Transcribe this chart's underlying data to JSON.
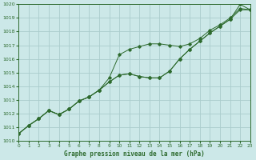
{
  "title": "Graphe pression niveau de la mer (hPa)",
  "x_values": [
    0,
    1,
    2,
    3,
    4,
    5,
    6,
    7,
    8,
    9,
    10,
    11,
    12,
    13,
    14,
    15,
    16,
    17,
    18,
    19,
    20,
    21,
    22,
    23
  ],
  "line1": [
    1010.5,
    1011.1,
    1011.6,
    1012.2,
    1011.9,
    1012.3,
    1012.9,
    1013.2,
    1013.7,
    1014.6,
    1016.3,
    1016.7,
    1016.9,
    1017.1,
    1017.1,
    1017.0,
    1016.9,
    1017.1,
    1017.5,
    1018.1,
    1018.5,
    1019.0,
    1019.7,
    1019.6
  ],
  "line2": [
    1010.5,
    1011.1,
    1011.6,
    1012.2,
    1011.9,
    1012.3,
    1012.9,
    1013.2,
    1013.7,
    1014.3,
    1014.8,
    1014.9,
    1014.7,
    1014.6,
    1014.6,
    1015.1,
    1016.0,
    1016.7,
    1017.3,
    1017.9,
    1018.4,
    1018.9,
    1019.6,
    1019.6
  ],
  "line3": [
    1010.5,
    1011.1,
    1011.6,
    1012.2,
    1011.9,
    1012.3,
    1012.9,
    1013.2,
    1013.7,
    1014.3,
    1014.8,
    1014.9,
    1014.7,
    1014.6,
    1014.6,
    1015.1,
    1016.0,
    1016.7,
    1017.3,
    1017.9,
    1018.4,
    1018.9,
    1020.0,
    1019.6
  ],
  "line_color": "#2d6a2d",
  "bg_color": "#cce8e8",
  "grid_color": "#aacccc",
  "ylim": [
    1010,
    1020
  ],
  "xlim": [
    0,
    23
  ],
  "yticks": [
    1010,
    1011,
    1012,
    1013,
    1014,
    1015,
    1016,
    1017,
    1018,
    1019,
    1020
  ],
  "xticks": [
    0,
    1,
    2,
    3,
    4,
    5,
    6,
    7,
    8,
    9,
    10,
    11,
    12,
    13,
    14,
    15,
    16,
    17,
    18,
    19,
    20,
    21,
    22,
    23
  ],
  "figsize": [
    3.2,
    2.0
  ],
  "dpi": 100
}
